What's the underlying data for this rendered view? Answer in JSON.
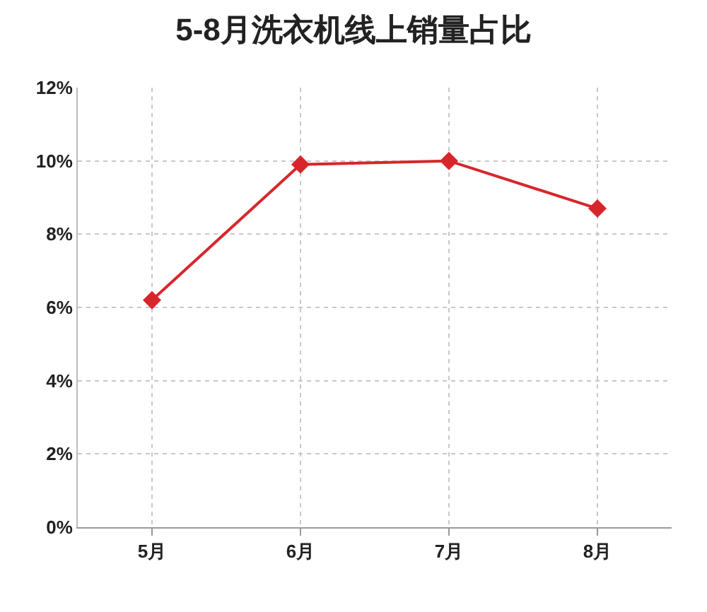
{
  "chart_data": {
    "type": "line",
    "title": "5-8月洗衣机线上销量占比",
    "categories": [
      "5月",
      "6月",
      "7月",
      "8月"
    ],
    "series": [
      {
        "color": "#d7262b",
        "values": [
          6.2,
          9.9,
          10.0,
          8.7
        ]
      }
    ],
    "ylim": [
      0,
      12
    ],
    "yticks": [
      {
        "value": 0,
        "label": "0%"
      },
      {
        "value": 2,
        "label": "2%"
      },
      {
        "value": 4,
        "label": "4%"
      },
      {
        "value": 6,
        "label": "6%"
      },
      {
        "value": 8,
        "label": "8%"
      },
      {
        "value": 10,
        "label": "10%"
      },
      {
        "value": 12,
        "label": "12%"
      }
    ],
    "grid": true,
    "marker": "diamond",
    "line_style": "solid"
  }
}
